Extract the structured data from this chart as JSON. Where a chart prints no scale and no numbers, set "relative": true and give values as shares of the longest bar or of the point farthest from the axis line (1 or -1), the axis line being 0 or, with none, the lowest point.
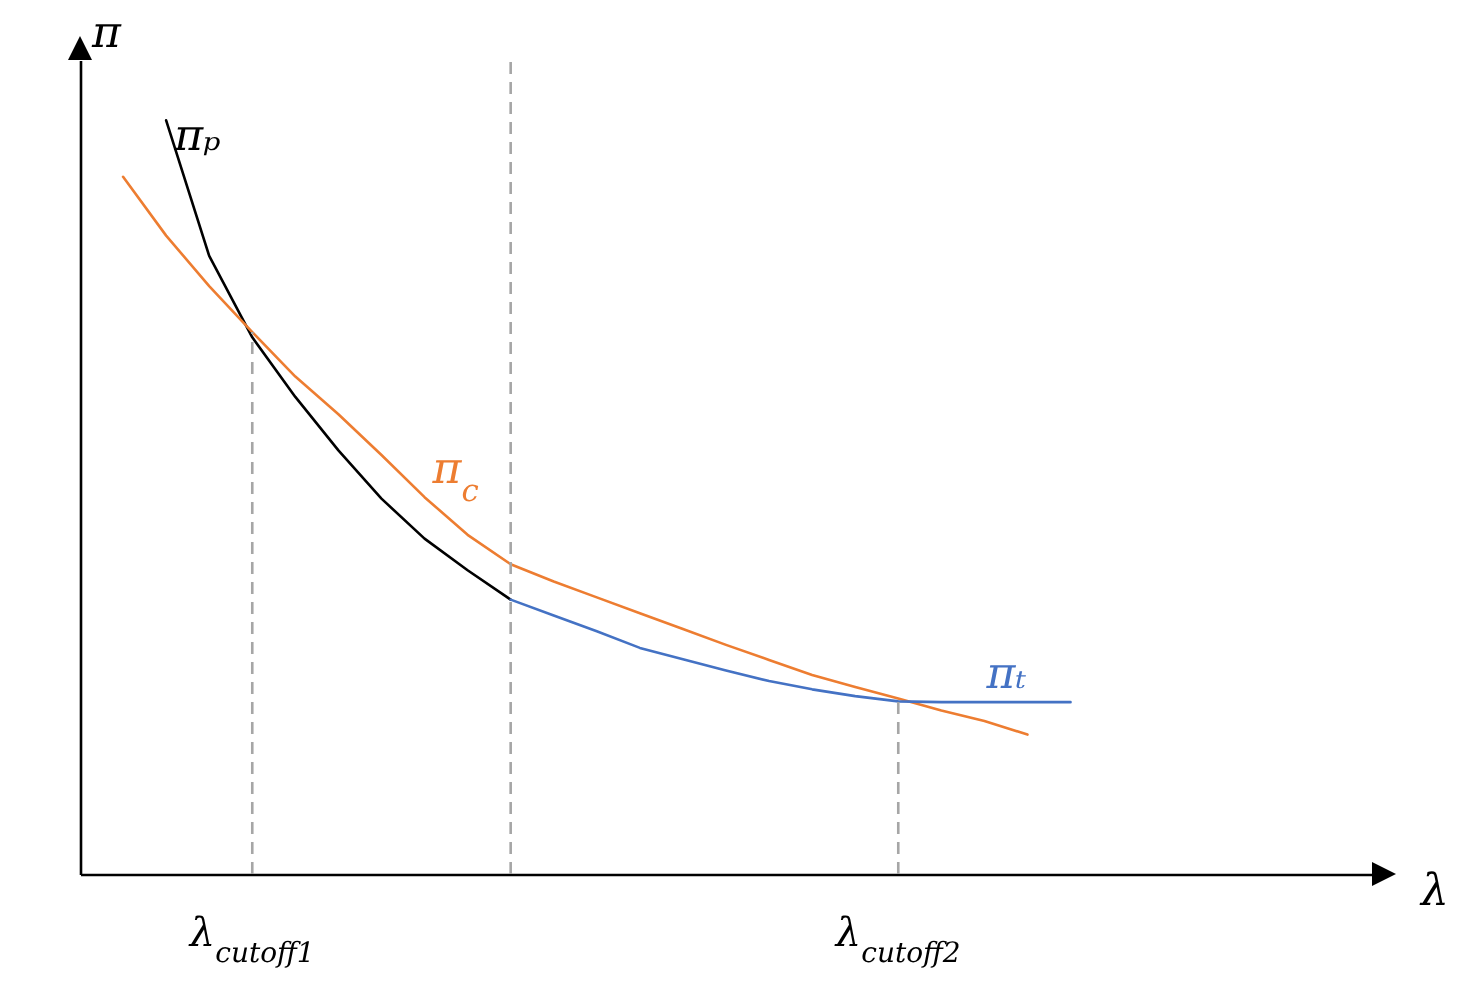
{
  "chart_data": {
    "type": "line",
    "relative": true,
    "xlabel": "λ",
    "ylabel": "π",
    "marker": "none",
    "categories": [
      null,
      null,
      null,
      null,
      null,
      null,
      null,
      null,
      null,
      null,
      null,
      null,
      null,
      null,
      null,
      null,
      null,
      null,
      null,
      null,
      null,
      null,
      null,
      null,
      null,
      null,
      null,
      null,
      null,
      null,
      null
    ],
    "series": [
      {
        "name": "πₚ",
        "color": "#000000",
        "values": [
          null,
          null,
          1.0,
          0.82,
          0.712,
          0.633,
          0.562,
          0.498,
          0.445,
          0.403,
          0.364,
          null,
          null,
          null,
          null,
          null,
          null,
          null,
          null,
          null,
          null,
          null,
          null,
          null,
          null,
          null,
          null,
          null,
          null,
          null,
          null
        ]
      },
      {
        "name": "π$_{c}$",
        "color": "#ed7d31",
        "values": [
          null,
          0.925,
          0.847,
          0.78,
          0.719,
          0.66,
          0.61,
          0.556,
          0.5,
          0.45,
          0.411,
          0.388,
          0.367,
          0.346,
          0.325,
          0.304,
          0.284,
          0.264,
          0.248,
          0.233,
          0.217,
          0.203,
          0.185,
          null,
          null,
          null,
          null,
          null,
          null,
          null,
          null
        ]
      },
      {
        "name": "πₜ",
        "color": "#4472c4",
        "values": [
          null,
          null,
          null,
          null,
          null,
          null,
          null,
          null,
          null,
          null,
          0.364,
          0.343,
          0.322,
          0.3,
          0.285,
          0.27,
          0.256,
          0.245,
          0.236,
          0.229,
          0.228,
          0.228,
          0.228,
          0.228,
          null,
          null,
          null,
          null,
          null,
          null,
          null
        ]
      }
    ],
    "annotations": [
      "λ$_{cutoff1}$",
      "λ$_{cutoff2}$"
    ]
  }
}
